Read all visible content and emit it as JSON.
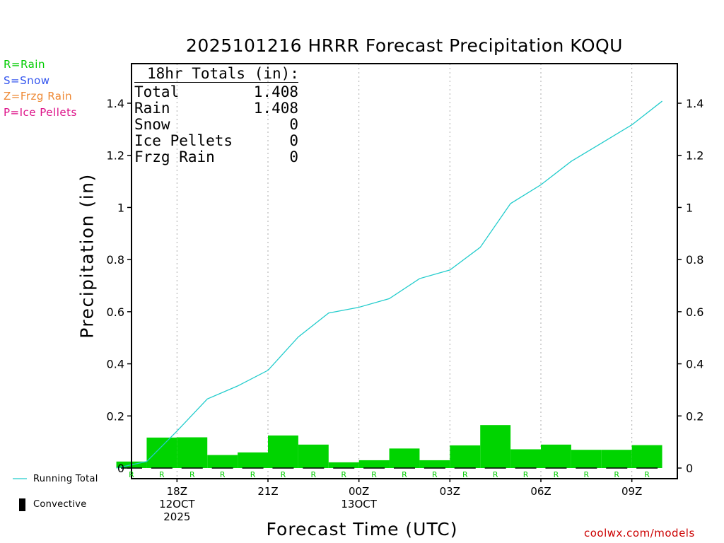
{
  "legend": {
    "types": [
      {
        "label": "R=Rain",
        "color": "#00cc00"
      },
      {
        "label": "S=Snow",
        "color": "#3355ee"
      },
      {
        "label": "Z=Frzg Rain",
        "color": "#ee8833"
      },
      {
        "label": "P=Ice Pellets",
        "color": "#dd1188"
      }
    ],
    "running_total_label": "Running Total",
    "convective_label": "Convective"
  },
  "totals": {
    "header": "18hr Totals (in):",
    "rows": [
      {
        "label": "Total",
        "value": "1.408"
      },
      {
        "label": "Rain",
        "value": "1.408"
      },
      {
        "label": "Snow",
        "value": "0"
      },
      {
        "label": "Ice Pellets",
        "value": "0"
      },
      {
        "label": "Frzg Rain",
        "value": "0"
      }
    ]
  },
  "credit": "coolwx.com/models",
  "colors": {
    "bar": "#00d400",
    "line": "#22cccc",
    "grid": "#aaaaaa"
  },
  "chart_data": {
    "type": "bar",
    "title": "2025101216 HRRR Forecast Precipitation KOQU",
    "xlabel": "Forecast Time (UTC)",
    "ylabel": "Precipitation (in)",
    "ylim": [
      0,
      1.55
    ],
    "yticks": [
      0,
      0.2,
      0.4,
      0.6,
      0.8,
      1,
      1.2,
      1.4
    ],
    "ytick_labels": [
      "0",
      "0.2",
      "0.4",
      "0.6",
      "0.8",
      "1",
      "1.2",
      "1.4"
    ],
    "xlim": [
      16.5,
      34.5
    ],
    "xticks": [
      {
        "hour": 18,
        "lines": [
          "18Z",
          "12OCT",
          "2025"
        ]
      },
      {
        "hour": 21,
        "lines": [
          "21Z"
        ]
      },
      {
        "hour": 24,
        "lines": [
          "00Z",
          "13OCT"
        ]
      },
      {
        "hour": 27,
        "lines": [
          "03Z"
        ]
      },
      {
        "hour": 30,
        "lines": [
          "06Z"
        ]
      },
      {
        "hour": 33,
        "lines": [
          "09Z"
        ]
      }
    ],
    "hours": [
      17,
      18,
      19,
      20,
      21,
      22,
      23,
      24,
      25,
      26,
      27,
      28,
      29,
      30,
      31,
      32,
      33,
      34
    ],
    "precip_types": [
      "R",
      "R",
      "R",
      "R",
      "R",
      "R",
      "R",
      "R",
      "R",
      "R",
      "R",
      "R",
      "R",
      "R",
      "R",
      "R",
      "R",
      "R"
    ],
    "series": [
      {
        "name": "Hourly Precipitation",
        "values": [
          0.025,
          0.117,
          0.118,
          0.05,
          0.06,
          0.125,
          0.09,
          0.022,
          0.03,
          0.075,
          0.03,
          0.087,
          0.165,
          0.072,
          0.09,
          0.07,
          0.07,
          0.088
        ]
      },
      {
        "name": "Running Total",
        "values": [
          0.025,
          0.142,
          0.265,
          0.315,
          0.375,
          0.503,
          0.595,
          0.617,
          0.65,
          0.727,
          0.76,
          0.847,
          1.015,
          1.087,
          1.177,
          1.247,
          1.317,
          1.408
        ]
      }
    ],
    "convective": []
  }
}
